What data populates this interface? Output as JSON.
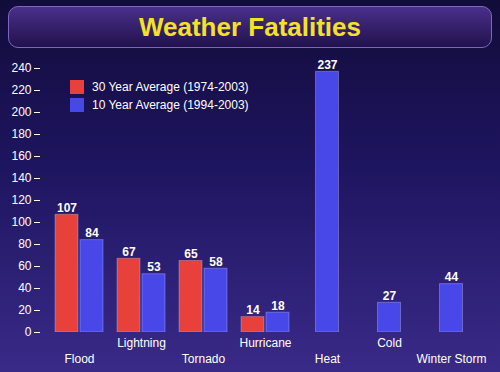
{
  "chart_data": {
    "type": "bar",
    "title": "Weather Fatalities",
    "categories": [
      "Flood",
      "Lightning",
      "Tornado",
      "Hurricane",
      "Heat",
      "Cold",
      "Winter Storm"
    ],
    "series": [
      {
        "name": "30 Year Average (1974-2003)",
        "color": "#e8403a",
        "values": [
          107,
          67,
          65,
          14,
          null,
          null,
          null
        ]
      },
      {
        "name": "10 Year Average (1994-2003)",
        "color": "#4848e8",
        "values": [
          84,
          53,
          58,
          18,
          237,
          27,
          44
        ]
      }
    ],
    "ylim": [
      0,
      240
    ],
    "yticks": [
      0,
      20,
      40,
      60,
      80,
      100,
      120,
      140,
      160,
      180,
      200,
      220,
      240
    ],
    "grid": false,
    "legend": "top-left",
    "data_labels": true
  }
}
